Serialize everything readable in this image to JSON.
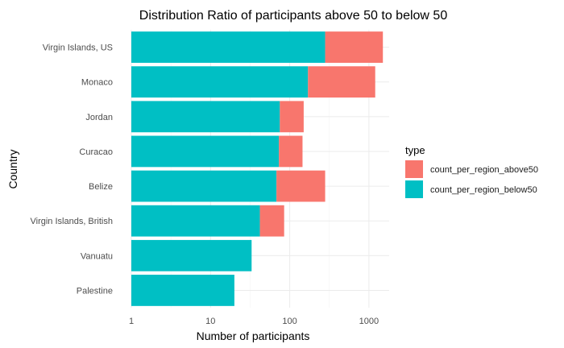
{
  "chart_data": {
    "type": "bar",
    "stacked": true,
    "orientation": "horizontal",
    "title": "Distribution Ratio of participants above 50 to below 50",
    "xlabel": "Number of participants",
    "ylabel": "Country",
    "x_scale": "log10",
    "xlim": [
      1,
      1800
    ],
    "x_ticks": [
      1,
      10,
      100,
      1000
    ],
    "x_tick_labels": [
      "1",
      "10",
      "100",
      "1000"
    ],
    "grid": true,
    "legend": {
      "title": "type",
      "position": "right"
    },
    "categories": [
      "Virgin Islands, US",
      "Monaco",
      "Jordan",
      "Curacao",
      "Belize",
      "Virgin Islands, British",
      "Vanuatu",
      "Palestine"
    ],
    "series": [
      {
        "name": "count_per_region_below50",
        "color": "#00BFC4",
        "values": [
          280,
          170,
          75,
          73,
          68,
          42,
          33,
          20
        ]
      },
      {
        "name": "count_per_region_above50",
        "color": "#F8766D",
        "values": [
          1220,
          1030,
          75,
          72,
          212,
          43,
          0,
          0
        ]
      }
    ],
    "bar_totals": [
      1500,
      1200,
      150,
      145,
      280,
      85,
      33,
      20
    ]
  }
}
